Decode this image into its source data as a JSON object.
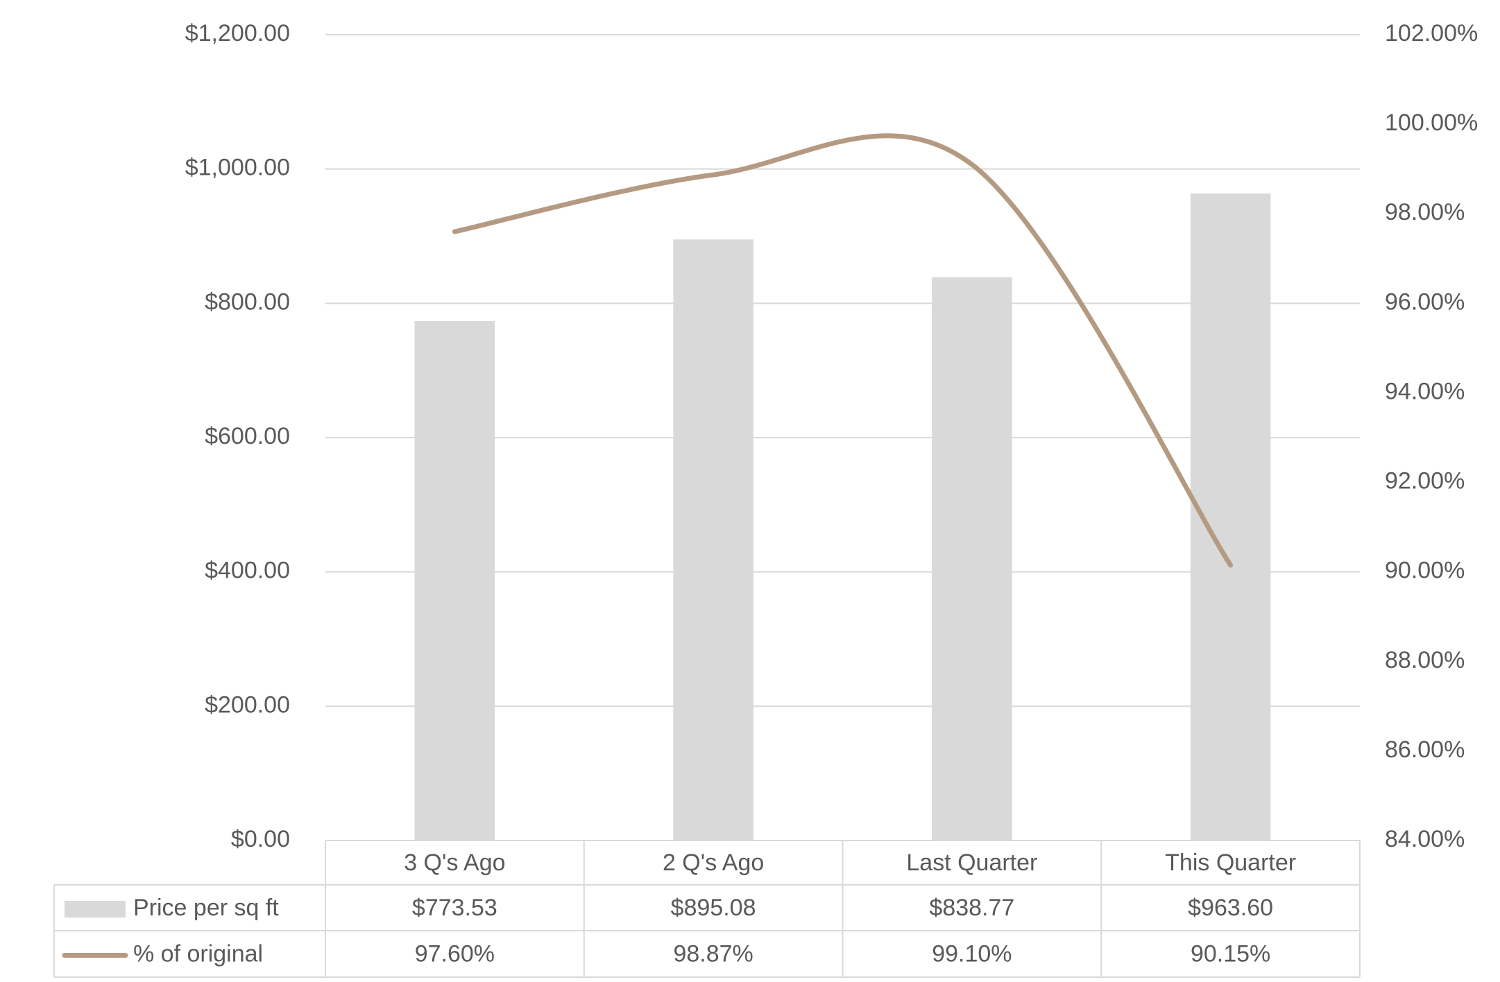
{
  "chart_data": {
    "type": "bar-line",
    "categories": [
      "3 Q's Ago",
      "2 Q's Ago",
      "Last Quarter",
      "This Quarter"
    ],
    "series": [
      {
        "name": "Price per sq ft",
        "type": "bar",
        "color": "#d9d9d9",
        "values": [
          773.53,
          895.08,
          838.77,
          963.6
        ],
        "value_labels": [
          "$773.53",
          "$895.08",
          "$838.77",
          "$963.60"
        ]
      },
      {
        "name": "% of original",
        "type": "line",
        "axis": "y2",
        "smooth": true,
        "color": "#b59a82",
        "values": [
          97.6,
          98.87,
          99.1,
          90.15
        ],
        "value_labels": [
          "97.60%",
          "98.87%",
          "99.10%",
          "90.15%"
        ]
      }
    ],
    "ylim": [
      0,
      1200
    ],
    "yticks": [
      {
        "value": 0,
        "label": "$0.00"
      },
      {
        "value": 200,
        "label": "$200.00"
      },
      {
        "value": 400,
        "label": "$400.00"
      },
      {
        "value": 600,
        "label": "$600.00"
      },
      {
        "value": 800,
        "label": "$800.00"
      },
      {
        "value": 1000,
        "label": "$1,000.00"
      },
      {
        "value": 1200,
        "label": "$1,200.00"
      }
    ],
    "y2lim": [
      84,
      102
    ],
    "y2ticks": [
      {
        "value": 84,
        "label": "84.00%"
      },
      {
        "value": 86,
        "label": "86.00%"
      },
      {
        "value": 88,
        "label": "88.00%"
      },
      {
        "value": 90,
        "label": "90.00%"
      },
      {
        "value": 92,
        "label": "92.00%"
      },
      {
        "value": 94,
        "label": "94.00%"
      },
      {
        "value": 96,
        "label": "96.00%"
      },
      {
        "value": 98,
        "label": "98.00%"
      },
      {
        "value": 100,
        "label": "100.00%"
      },
      {
        "value": 102,
        "label": "102.00%"
      }
    ],
    "grid": true,
    "data_table": true
  }
}
